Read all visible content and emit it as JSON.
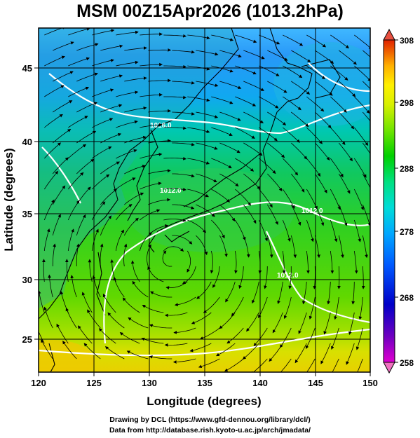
{
  "title": "MSM 00Z15Apr2026 (1013.2hPa)",
  "x_axis": {
    "label": "Longitude (degrees)",
    "ticks": [
      "120",
      "125",
      "130",
      "135",
      "140",
      "145",
      "150"
    ],
    "range": [
      120,
      150
    ]
  },
  "y_axis": {
    "label": "Latitude  (degrees)",
    "ticks": [
      "25",
      "30",
      "35",
      "40",
      "45"
    ],
    "range": [
      22.6,
      47.6
    ]
  },
  "colorbar": {
    "ticks": [
      "308",
      "298",
      "288",
      "278",
      "268",
      "258"
    ],
    "range": [
      258,
      308
    ],
    "colors": [
      "#e000d0",
      "#6000c0",
      "#0000c0",
      "#0050ff",
      "#00a0ff",
      "#00d8e0",
      "#00e090",
      "#00d000",
      "#60e000",
      "#c8f000",
      "#fff000",
      "#ffb000",
      "#ff6000",
      "#e02000"
    ]
  },
  "contour_labels": [
    "1016.0",
    "1012.0",
    "1012.0",
    "1012.0"
  ],
  "footer": {
    "line1": "Drawing by DCL (https://www.gfd-dennou.org/library/dcl/)",
    "line2": "Data from http://database.rish.kyoto-u.ac.jp/arch/jmadata/"
  }
}
